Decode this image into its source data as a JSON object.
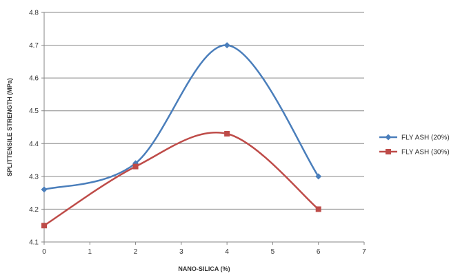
{
  "chart_data": {
    "type": "line",
    "xlabel": "NANO-SILICA (%)",
    "ylabel": "SPLITTENSILE STRENGTH (MPa)",
    "xlim": [
      0,
      7
    ],
    "ylim": [
      4.1,
      4.8
    ],
    "x_ticks": [
      "0",
      "1",
      "2",
      "3",
      "4",
      "5",
      "6",
      "7"
    ],
    "y_ticks": [
      "4.1",
      "4.2",
      "4.3",
      "4.4",
      "4.5",
      "4.6",
      "4.7",
      "4.8"
    ],
    "grid": "horizontal",
    "legend_position": "right",
    "smooth": true,
    "series": [
      {
        "name": "FLY ASH (20%)",
        "color": "#4A7EBB",
        "marker": "diamond",
        "x": [
          0,
          2,
          4,
          6
        ],
        "y": [
          4.26,
          4.34,
          4.7,
          4.3
        ]
      },
      {
        "name": "FLY ASH (30%)",
        "color": "#BE4B48",
        "marker": "square",
        "x": [
          0,
          2,
          4,
          6
        ],
        "y": [
          4.15,
          4.33,
          4.43,
          4.2
        ]
      }
    ]
  }
}
